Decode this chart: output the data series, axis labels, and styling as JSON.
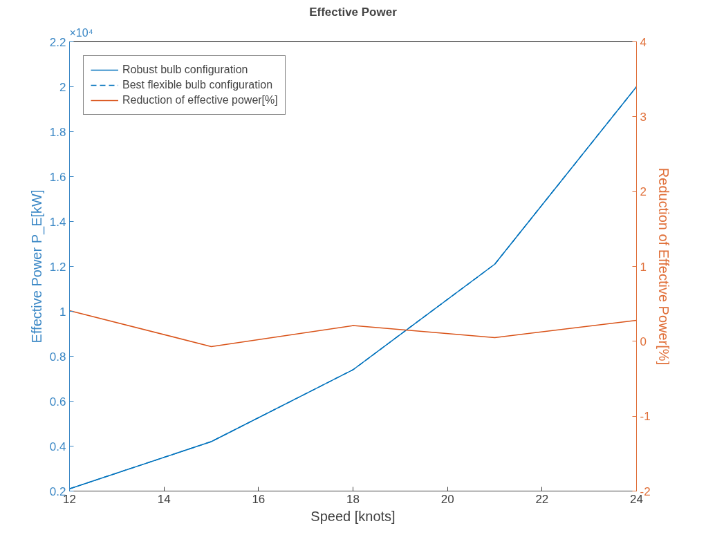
{
  "chart_data": {
    "type": "line",
    "title": "Effective Power",
    "xlabel": "Speed [knots]",
    "ylabel": "Effective Power P_E[kW]",
    "y2label": "Reduction of Effective Power[%]",
    "x": [
      12,
      15,
      18,
      21,
      24
    ],
    "series": [
      {
        "name": "Robust bulb configuration",
        "color": "#0072bd",
        "values": [
          0.21,
          0.42,
          0.74,
          1.21,
          2.0
        ],
        "line_style": "solid"
      },
      {
        "name": "Best flexible bulb configuration",
        "color": "#0072bd",
        "values": [
          0.21,
          0.42,
          0.74,
          1.21,
          2.0
        ],
        "line_style": "dashed"
      },
      {
        "name": "Reduction of effective power[%]",
        "color": "#d95319",
        "values": [
          0.41,
          -0.07,
          0.21,
          0.05,
          0.28
        ],
        "axis": "y2",
        "line_style": "solid"
      }
    ],
    "xlim": [
      12,
      24
    ],
    "xticks": [
      12,
      14,
      16,
      18,
      20,
      22,
      24
    ],
    "ylim": [
      0.2,
      2.2
    ],
    "yticks": [
      0.2,
      0.4,
      0.6,
      0.8,
      1,
      1.2,
      1.4,
      1.6,
      1.8,
      2,
      2.2
    ],
    "y2lim": [
      -2,
      4
    ],
    "y2ticks": [
      -2,
      -1,
      0,
      1,
      2,
      3,
      4
    ],
    "annotations": [
      "×10⁴"
    ],
    "legend": "top left",
    "grid": false
  }
}
